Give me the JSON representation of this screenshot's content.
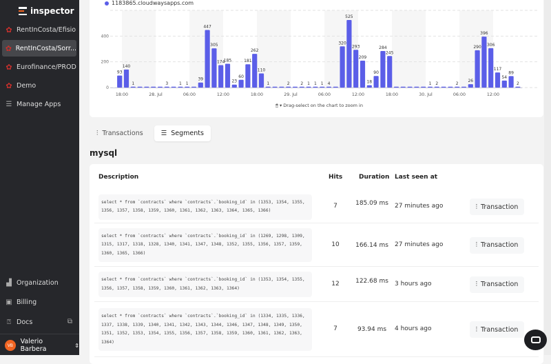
{
  "app": {
    "name": "inspector"
  },
  "sidebar": {
    "apps": [
      {
        "label": "RentInCosta/Efisio"
      },
      {
        "label": "RentInCosta/Sorr..."
      },
      {
        "label": "Eurofinance/PROD"
      },
      {
        "label": "Demo"
      }
    ],
    "manage": "Manage Apps",
    "bottom": [
      {
        "label": "Organization"
      },
      {
        "label": "Billing"
      },
      {
        "label": "Docs"
      }
    ],
    "user": {
      "name": "Valerio Barbera",
      "initials": "VB"
    }
  },
  "chart_hint": "Drag-select on the chart to zoom in",
  "chart_data": {
    "type": "bar",
    "legend": "1183865.cloudwaysapps.com",
    "legend_position": "top-left",
    "color": "#5b5ee8",
    "ylim": [
      0,
      600
    ],
    "yticks": [
      0,
      200,
      400
    ],
    "xtick_labels": [
      "18:00",
      "28. Jul",
      "06:00",
      "12:00",
      "18:00",
      "29. Jul",
      "06:00",
      "12:00",
      "18:00",
      "30. Jul",
      "06:00",
      "12:00"
    ],
    "grid": true,
    "values": [
      93,
      140,
      1,
      0,
      0,
      0,
      0,
      3,
      0,
      1,
      1,
      0,
      39,
      447,
      305,
      174,
      185,
      23,
      60,
      181,
      262,
      110,
      1,
      0,
      0,
      2,
      0,
      2,
      1,
      1,
      1,
      4,
      0,
      320,
      525,
      293,
      209,
      18,
      90,
      284,
      245,
      0,
      0,
      0,
      0,
      0,
      1,
      2,
      0,
      0,
      2,
      0,
      26,
      290,
      396,
      306,
      117,
      54,
      89,
      2
    ]
  },
  "tabs": [
    {
      "label": "Transactions",
      "active": false
    },
    {
      "label": "Segments",
      "active": true
    }
  ],
  "section_title": "mysql",
  "table": {
    "headers": {
      "description": "Description",
      "hits": "Hits",
      "duration": "Duration",
      "last_seen": "Last seen at"
    },
    "action_label": "Transaction",
    "rows": [
      {
        "sql": "select * from `contracts` where `contracts`.`booking_id` in (1353, 1354, 1355, 1356, 1357, 1358, 1359, 1360, 1361, 1362, 1363, 1364, 1365, 1366)",
        "hits": "7",
        "duration": "185.09 ms",
        "last_seen": "27 minutes ago"
      },
      {
        "sql": "select * from `contracts` where `contracts`.`booking_id` in (1269, 1298, 1309, 1315, 1317, 1318, 1328, 1340, 1341, 1347, 1348, 1352, 1355, 1356, 1357, 1359, 1360, 1365, 1366)",
        "hits": "10",
        "duration": "166.14 ms",
        "last_seen": "27 minutes ago"
      },
      {
        "sql": "select * from `contracts` where `contracts`.`booking_id` in (1353, 1354, 1355, 1356, 1357, 1358, 1359, 1360, 1361, 1362, 1363, 1364)",
        "hits": "12",
        "duration": "122.68 ms",
        "last_seen": "3 hours ago"
      },
      {
        "sql": "select * from `contracts` where `contracts`.`booking_id` in (1334, 1335, 1336, 1337, 1338, 1339, 1340, 1341, 1342, 1343, 1344, 1346, 1347, 1348, 1349, 1350, 1351, 1352, 1353, 1354, 1355, 1356, 1357, 1358, 1359, 1360, 1361, 1362, 1363, 1364)",
        "hits": "7",
        "duration": "93.94 ms",
        "last_seen": "4 hours ago"
      }
    ]
  }
}
